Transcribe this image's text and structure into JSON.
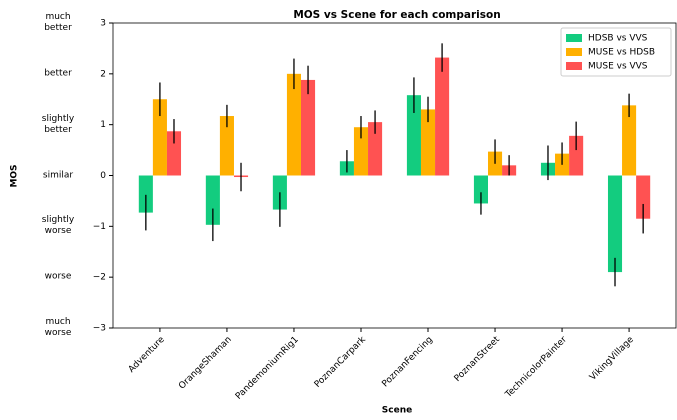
{
  "chart_data": {
    "type": "bar",
    "title": "MOS vs Scene for each comparison",
    "x_label": "Scene",
    "y_label": "MOS",
    "categories": [
      "Adventure",
      "OrangeShaman",
      "PandemoniumRig1",
      "PoznanCarpark",
      "PoznanFencing",
      "PoznanStreet",
      "TechnicolorPainter",
      "VikingVillage"
    ],
    "series": [
      {
        "name": "HDSB vs VVS",
        "color": "#13cc7f",
        "values": [
          -0.73,
          -0.97,
          -0.67,
          0.28,
          1.58,
          -0.55,
          0.25,
          -1.9
        ],
        "errors": [
          0.35,
          0.32,
          0.34,
          0.22,
          0.35,
          0.22,
          0.34,
          0.28
        ]
      },
      {
        "name": "MUSE vs HDSB",
        "color": "#ffb000",
        "values": [
          1.5,
          1.17,
          2.0,
          0.95,
          1.3,
          0.47,
          0.43,
          1.38
        ],
        "errors": [
          0.33,
          0.22,
          0.3,
          0.22,
          0.25,
          0.24,
          0.22,
          0.23
        ]
      },
      {
        "name": "MUSE vs VVS",
        "color": "#ff5252",
        "values": [
          0.87,
          -0.03,
          1.88,
          1.05,
          2.32,
          0.2,
          0.78,
          -0.85
        ],
        "errors": [
          0.24,
          0.28,
          0.28,
          0.23,
          0.28,
          0.2,
          0.28,
          0.29
        ]
      }
    ],
    "ylim": [
      -3,
      3
    ],
    "yticks": [
      {
        "value": -3,
        "label": "−3"
      },
      {
        "value": -2,
        "label": "−2"
      },
      {
        "value": -1,
        "label": "−1"
      },
      0,
      1,
      2,
      3
    ],
    "y_text_ticks": [
      {
        "value": 3,
        "label": "much\nbetter"
      },
      {
        "value": 2,
        "label": "better"
      },
      {
        "value": 1,
        "label": "slightly\nbetter"
      },
      {
        "value": 0,
        "label": "similar"
      },
      {
        "value": -1,
        "label": "slightly\nworse"
      },
      {
        "value": -2,
        "label": "worse"
      },
      {
        "value": -3,
        "label": "much\nworse"
      }
    ],
    "legend": "upper right"
  }
}
